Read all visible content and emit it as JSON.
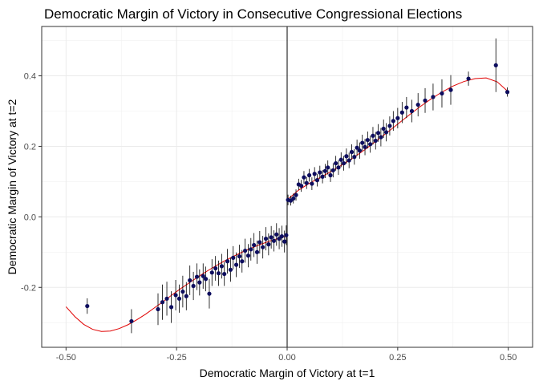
{
  "chart_data": {
    "type": "scatter",
    "title": "Democratic Margin of Victory in Consecutive Congressional Elections",
    "xlabel": "Democratic Margin of Victory at t=1",
    "ylabel": "Democratic Margin of Victory at t=2",
    "xlim": [
      -0.5,
      0.5
    ],
    "ylim": [
      -0.37,
      0.54
    ],
    "x_ticks": [
      -0.5,
      -0.25,
      0.0,
      0.25,
      0.5
    ],
    "x_tick_labels": [
      "-0.50",
      "-0.25",
      "0.00",
      "0.25",
      "0.50"
    ],
    "y_ticks": [
      -0.2,
      0.0,
      0.2,
      0.4
    ],
    "y_tick_labels": [
      "-0.2",
      "0.0",
      "0.2",
      "0.4"
    ],
    "grid": true,
    "cutoff_x": 0.0,
    "colors": {
      "points": "#0d0d5e",
      "fit": "#e00000",
      "errorbar": "#000000",
      "cutoff": "#000000"
    },
    "series": [
      {
        "points": [
          [
            -0.452,
            -0.253,
            0.022
          ],
          [
            -0.352,
            -0.296,
            0.034
          ],
          [
            -0.292,
            -0.262,
            0.045
          ],
          [
            -0.282,
            -0.242,
            0.05
          ],
          [
            -0.272,
            -0.232,
            0.048
          ],
          [
            -0.262,
            -0.256,
            0.045
          ],
          [
            -0.252,
            -0.222,
            0.043
          ],
          [
            -0.244,
            -0.232,
            0.04
          ],
          [
            -0.236,
            -0.212,
            0.045
          ],
          [
            -0.228,
            -0.225,
            0.04
          ],
          [
            -0.22,
            -0.18,
            0.042
          ],
          [
            -0.212,
            -0.196,
            0.04
          ],
          [
            -0.204,
            -0.17,
            0.038
          ],
          [
            -0.198,
            -0.186,
            0.037
          ],
          [
            -0.19,
            -0.168,
            0.036
          ],
          [
            -0.184,
            -0.176,
            0.035
          ],
          [
            -0.176,
            -0.218,
            0.042
          ],
          [
            -0.17,
            -0.158,
            0.038
          ],
          [
            -0.162,
            -0.146,
            0.035
          ],
          [
            -0.155,
            -0.16,
            0.036
          ],
          [
            -0.148,
            -0.14,
            0.035
          ],
          [
            -0.142,
            -0.162,
            0.034
          ],
          [
            -0.135,
            -0.126,
            0.035
          ],
          [
            -0.128,
            -0.15,
            0.034
          ],
          [
            -0.122,
            -0.116,
            0.033
          ],
          [
            -0.115,
            -0.136,
            0.035
          ],
          [
            -0.108,
            -0.112,
            0.033
          ],
          [
            -0.102,
            -0.126,
            0.032
          ],
          [
            -0.095,
            -0.096,
            0.034
          ],
          [
            -0.088,
            -0.11,
            0.033
          ],
          [
            -0.082,
            -0.092,
            0.032
          ],
          [
            -0.075,
            -0.08,
            0.034
          ],
          [
            -0.068,
            -0.1,
            0.033
          ],
          [
            -0.062,
            -0.072,
            0.032
          ],
          [
            -0.055,
            -0.086,
            0.032
          ],
          [
            -0.048,
            -0.062,
            0.033
          ],
          [
            -0.042,
            -0.078,
            0.031
          ],
          [
            -0.036,
            -0.058,
            0.032
          ],
          [
            -0.03,
            -0.068,
            0.03
          ],
          [
            -0.024,
            -0.05,
            0.032
          ],
          [
            -0.018,
            -0.062,
            0.03
          ],
          [
            -0.012,
            -0.055,
            0.03
          ],
          [
            -0.006,
            -0.07,
            0.031
          ],
          [
            -0.002,
            -0.052,
            0.028
          ],
          [
            0.002,
            0.048,
            0.015
          ],
          [
            0.008,
            0.046,
            0.014
          ],
          [
            0.014,
            0.052,
            0.014
          ],
          [
            0.02,
            0.062,
            0.016
          ],
          [
            0.026,
            0.092,
            0.016
          ],
          [
            0.032,
            0.088,
            0.017
          ],
          [
            0.038,
            0.112,
            0.018
          ],
          [
            0.044,
            0.096,
            0.017
          ],
          [
            0.05,
            0.118,
            0.018
          ],
          [
            0.056,
            0.094,
            0.018
          ],
          [
            0.062,
            0.122,
            0.019
          ],
          [
            0.068,
            0.104,
            0.018
          ],
          [
            0.074,
            0.126,
            0.019
          ],
          [
            0.08,
            0.114,
            0.019
          ],
          [
            0.086,
            0.13,
            0.02
          ],
          [
            0.092,
            0.14,
            0.02
          ],
          [
            0.098,
            0.118,
            0.019
          ],
          [
            0.104,
            0.132,
            0.02
          ],
          [
            0.11,
            0.152,
            0.021
          ],
          [
            0.116,
            0.14,
            0.021
          ],
          [
            0.122,
            0.162,
            0.021
          ],
          [
            0.128,
            0.152,
            0.021
          ],
          [
            0.134,
            0.172,
            0.022
          ],
          [
            0.14,
            0.16,
            0.022
          ],
          [
            0.146,
            0.184,
            0.022
          ],
          [
            0.152,
            0.17,
            0.022
          ],
          [
            0.158,
            0.196,
            0.023
          ],
          [
            0.164,
            0.188,
            0.023
          ],
          [
            0.17,
            0.21,
            0.023
          ],
          [
            0.176,
            0.198,
            0.023
          ],
          [
            0.182,
            0.218,
            0.024
          ],
          [
            0.188,
            0.206,
            0.024
          ],
          [
            0.194,
            0.23,
            0.025
          ],
          [
            0.2,
            0.216,
            0.025
          ],
          [
            0.206,
            0.238,
            0.025
          ],
          [
            0.212,
            0.226,
            0.026
          ],
          [
            0.218,
            0.25,
            0.026
          ],
          [
            0.224,
            0.24,
            0.026
          ],
          [
            0.232,
            0.258,
            0.027
          ],
          [
            0.24,
            0.272,
            0.028
          ],
          [
            0.25,
            0.28,
            0.029
          ],
          [
            0.26,
            0.296,
            0.03
          ],
          [
            0.27,
            0.31,
            0.03
          ],
          [
            0.282,
            0.3,
            0.032
          ],
          [
            0.296,
            0.318,
            0.033
          ],
          [
            0.312,
            0.33,
            0.035
          ],
          [
            0.33,
            0.34,
            0.038
          ],
          [
            0.35,
            0.35,
            0.04
          ],
          [
            0.37,
            0.36,
            0.042
          ],
          [
            0.41,
            0.392,
            0.02
          ],
          [
            0.472,
            0.43,
            0.076
          ],
          [
            0.498,
            0.354,
            0.013
          ]
        ]
      }
    ],
    "fit_left": [
      [
        -0.5,
        -0.255
      ],
      [
        -0.48,
        -0.283
      ],
      [
        -0.46,
        -0.305
      ],
      [
        -0.44,
        -0.319
      ],
      [
        -0.42,
        -0.325
      ],
      [
        -0.4,
        -0.324
      ],
      [
        -0.38,
        -0.317
      ],
      [
        -0.36,
        -0.306
      ],
      [
        -0.34,
        -0.292
      ],
      [
        -0.32,
        -0.276
      ],
      [
        -0.3,
        -0.258
      ],
      [
        -0.28,
        -0.24
      ],
      [
        -0.26,
        -0.221
      ],
      [
        -0.24,
        -0.203
      ],
      [
        -0.22,
        -0.186
      ],
      [
        -0.2,
        -0.169
      ],
      [
        -0.18,
        -0.153
      ],
      [
        -0.16,
        -0.138
      ],
      [
        -0.14,
        -0.124
      ],
      [
        -0.12,
        -0.111
      ],
      [
        -0.1,
        -0.099
      ],
      [
        -0.08,
        -0.088
      ],
      [
        -0.06,
        -0.078
      ],
      [
        -0.04,
        -0.069
      ],
      [
        -0.02,
        -0.061
      ],
      [
        0.0,
        -0.054
      ]
    ],
    "fit_right": [
      [
        0.0,
        0.048
      ],
      [
        0.025,
        0.075
      ],
      [
        0.05,
        0.095
      ],
      [
        0.075,
        0.112
      ],
      [
        0.1,
        0.129
      ],
      [
        0.125,
        0.148
      ],
      [
        0.15,
        0.168
      ],
      [
        0.175,
        0.19
      ],
      [
        0.2,
        0.214
      ],
      [
        0.225,
        0.238
      ],
      [
        0.25,
        0.263
      ],
      [
        0.275,
        0.288
      ],
      [
        0.3,
        0.312
      ],
      [
        0.325,
        0.334
      ],
      [
        0.35,
        0.354
      ],
      [
        0.375,
        0.371
      ],
      [
        0.4,
        0.384
      ],
      [
        0.425,
        0.392
      ],
      [
        0.45,
        0.394
      ],
      [
        0.475,
        0.383
      ],
      [
        0.5,
        0.355
      ]
    ]
  }
}
